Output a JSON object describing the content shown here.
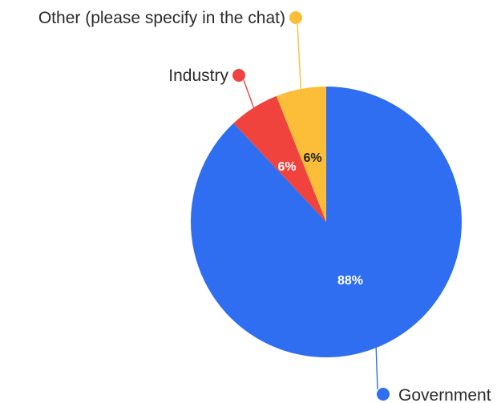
{
  "chart_data": {
    "type": "pie",
    "categories": [
      "Government",
      "Industry",
      "Other (please specify in the chat)"
    ],
    "values": [
      88,
      6,
      6
    ],
    "value_labels": [
      "88%",
      "6%",
      "6%"
    ],
    "colors": [
      "#2f6ef0",
      "#f0433e",
      "#fcbe38"
    ],
    "label_colors": [
      "#ffffff",
      "#ffffff",
      "#222222"
    ],
    "start_angle_deg": 0,
    "direction": "clockwise",
    "legend": "callouts"
  }
}
